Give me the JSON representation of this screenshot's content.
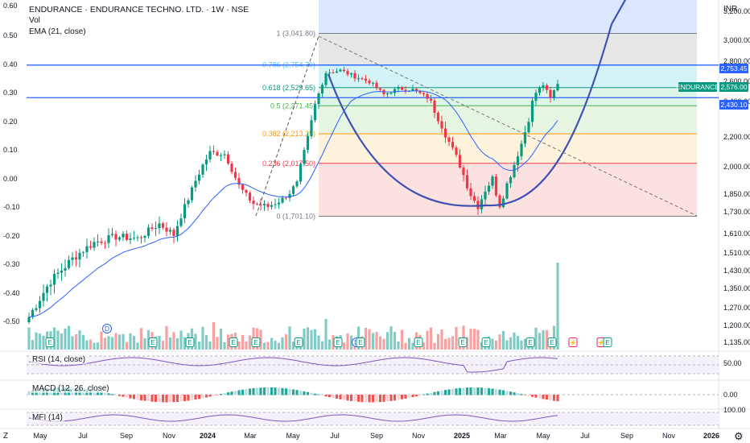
{
  "header": {
    "title": "ENDURANCE · ENDURANCE TECHNO. LTD. · 1W · NSE",
    "vol_label": "Vol",
    "ema_label": "EMA (21, close)"
  },
  "currency_label": "INR",
  "price_axis": [
    "3,200.00",
    "3,000.00",
    "2,800.00",
    "2,600.00",
    "2,400.00",
    "2,200.00",
    "2,000.00",
    "1,850.00",
    "1,730.00",
    "1,610.00",
    "1,510.00",
    "1,430.00",
    "1,350.00",
    "1,270.00",
    "1,200.00",
    "1,135.00"
  ],
  "left_axis": [
    "0.60",
    "0.50",
    "0.40",
    "0.30",
    "0.20",
    "0.10",
    "0.00",
    "-0.10",
    "-0.20",
    "-0.30",
    "-0.40",
    "-0.50"
  ],
  "time_axis": [
    "May",
    "Jul",
    "Sep",
    "Nov",
    "2024",
    "Mar",
    "May",
    "Jul",
    "Sep",
    "Nov",
    "2025",
    "Mar",
    "May",
    "Jul",
    "Sep",
    "Nov",
    "2026"
  ],
  "price_tags": [
    {
      "label": "2,753.45",
      "color": "#2962ff"
    },
    {
      "label": "ENDURANCE",
      "color": "#089981"
    },
    {
      "label": "2,576.00",
      "color": "#089981"
    },
    {
      "label": "2,430.10",
      "color": "#2962ff"
    }
  ],
  "fib_levels": [
    {
      "label": "1 (3,041.80)",
      "color": "#787b86"
    },
    {
      "label": "0.786 (2,754.70)",
      "color": "#4fc3f7"
    },
    {
      "label": "0.618 (2,529.65)",
      "color": "#089981"
    },
    {
      "label": "0.5 (2,371.45)",
      "color": "#4caf50"
    },
    {
      "label": "0.382 (2,213.25)",
      "color": "#ff9800"
    },
    {
      "label": "0.236 (2,017.50)",
      "color": "#f23645"
    },
    {
      "label": "0 (1,701.10)",
      "color": "#787b86"
    }
  ],
  "indicators": {
    "rsi_label": "RSI (14, close)",
    "rsi_value": "50.00",
    "macd_label": "MACD (12, 26, close)",
    "macd_value": "0.00",
    "mfi_label": "MFI (14)",
    "mfi_value": "100.00"
  },
  "event_badges": [
    {
      "glyph": "E",
      "kind": "earnings"
    },
    {
      "glyph": "D",
      "kind": "dividend"
    },
    {
      "glyph": "E",
      "kind": "earnings"
    },
    {
      "glyph": "E",
      "kind": "earnings"
    },
    {
      "glyph": "E",
      "kind": "earnings"
    },
    {
      "glyph": "E",
      "kind": "earnings"
    },
    {
      "glyph": "E",
      "kind": "earnings"
    },
    {
      "glyph": "E",
      "kind": "earnings"
    },
    {
      "glyph": "D",
      "kind": "dividend"
    },
    {
      "glyph": "E",
      "kind": "earnings"
    },
    {
      "glyph": "E",
      "kind": "earnings"
    },
    {
      "glyph": "E",
      "kind": "earnings"
    },
    {
      "glyph": "E",
      "kind": "earnings"
    },
    {
      "glyph": "E",
      "kind": "earnings"
    },
    {
      "glyph": "E",
      "kind": "earnings"
    },
    {
      "glyph": "⚡",
      "kind": "split"
    },
    {
      "glyph": "⚡",
      "kind": "split"
    },
    {
      "glyph": "E",
      "kind": "earnings"
    }
  ],
  "corner_zoom": "Z",
  "corner_settings": "⚙",
  "colors": {
    "up": "#089981",
    "down": "#f23645",
    "vol_up": "#80cbc4",
    "vol_down": "#f7a1a1",
    "ema": "#2962ff",
    "cup": "#3f51b5",
    "hline": "#2962ff"
  }
}
